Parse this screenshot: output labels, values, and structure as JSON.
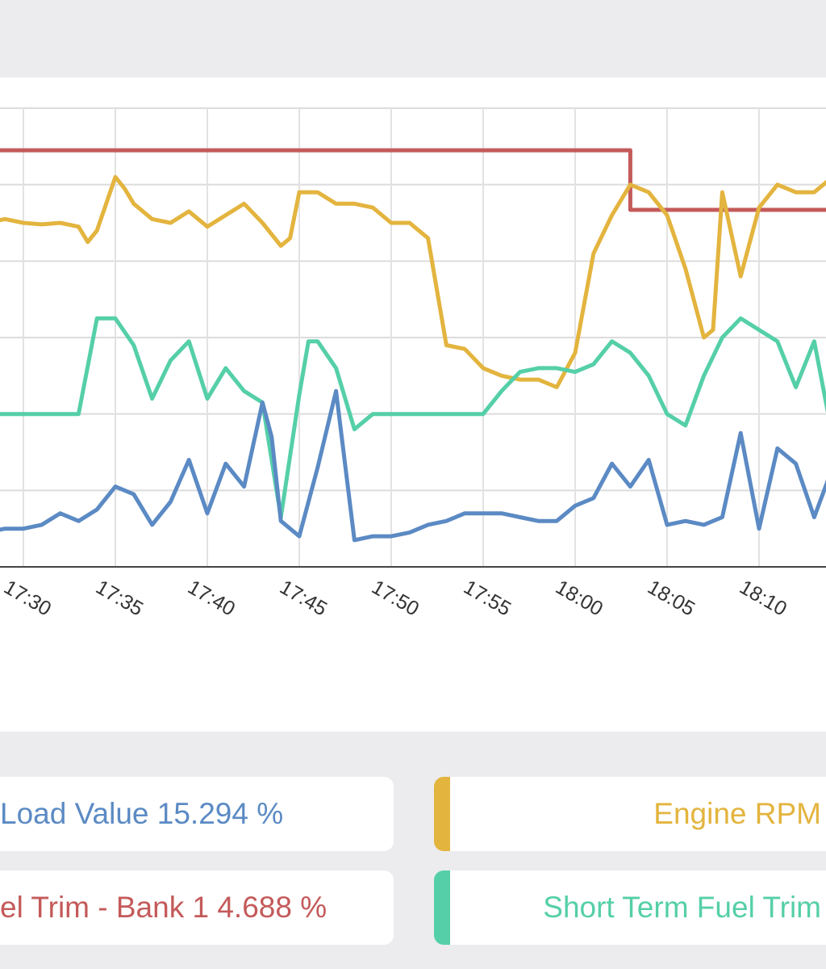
{
  "colors": {
    "load": "#5b8ac4",
    "rpm": "#e3b43e",
    "ltft": "#c45a5a",
    "stft": "#55cfa8"
  },
  "legend": {
    "load_text": "Load Value 15.294 %",
    "rpm_text": "Engine RPM",
    "ltft_text": "el Trim - Bank 1 4.688 %",
    "stft_text": "Short Term Fuel Trim"
  },
  "chart_data": {
    "type": "line",
    "xlabel": "",
    "ylabel": "",
    "grid": true,
    "xlim": [
      "17:27",
      "18:14"
    ],
    "x_ticks": [
      "17:30",
      "17:35",
      "17:40",
      "17:45",
      "17:50",
      "17:55",
      "18:00",
      "18:05",
      "18:10"
    ],
    "y_scale": "normalized 0-6 (no y tick labels visible)",
    "ylim": [
      0,
      6
    ],
    "series": [
      {
        "key": "ltft",
        "points": [
          [
            "17:27",
            5.45
          ],
          [
            "18:03",
            5.45
          ],
          [
            "18:03",
            4.67
          ],
          [
            "18:14",
            4.67
          ]
        ]
      },
      {
        "key": "rpm",
        "points": [
          [
            "17:27",
            4.5
          ],
          [
            "17:27.5",
            4.5
          ],
          [
            "17:28",
            4.5
          ],
          [
            "17:29",
            4.55
          ],
          [
            "17:30",
            4.5
          ],
          [
            "17:31",
            4.48
          ],
          [
            "17:32",
            4.5
          ],
          [
            "17:33",
            4.45
          ],
          [
            "17:33.5",
            4.25
          ],
          [
            "17:34",
            4.4
          ],
          [
            "17:35",
            5.1
          ],
          [
            "17:35.5",
            4.95
          ],
          [
            "17:36",
            4.75
          ],
          [
            "17:37",
            4.55
          ],
          [
            "17:38",
            4.5
          ],
          [
            "17:39",
            4.65
          ],
          [
            "17:40",
            4.45
          ],
          [
            "17:41",
            4.6
          ],
          [
            "17:42",
            4.75
          ],
          [
            "17:43",
            4.5
          ],
          [
            "17:44",
            4.2
          ],
          [
            "17:44.5",
            4.3
          ],
          [
            "17:45",
            4.9
          ],
          [
            "17:46",
            4.9
          ],
          [
            "17:47",
            4.75
          ],
          [
            "17:48",
            4.75
          ],
          [
            "17:49",
            4.7
          ],
          [
            "17:50",
            4.5
          ],
          [
            "17:51",
            4.5
          ],
          [
            "17:52",
            4.3
          ],
          [
            "17:53",
            2.9
          ],
          [
            "17:54",
            2.85
          ],
          [
            "17:55",
            2.6
          ],
          [
            "17:56",
            2.5
          ],
          [
            "17:57",
            2.45
          ],
          [
            "17:58",
            2.45
          ],
          [
            "17:59",
            2.35
          ],
          [
            "18:00",
            2.8
          ],
          [
            "18:01",
            4.1
          ],
          [
            "18:02",
            4.6
          ],
          [
            "18:03",
            5.0
          ],
          [
            "18:04",
            4.9
          ],
          [
            "18:05",
            4.6
          ],
          [
            "18:06",
            3.9
          ],
          [
            "18:07",
            3.0
          ],
          [
            "18:07.5",
            3.1
          ],
          [
            "18:08",
            4.9
          ],
          [
            "18:09",
            3.8
          ],
          [
            "18:10",
            4.7
          ],
          [
            "18:11",
            5.0
          ],
          [
            "18:12",
            4.9
          ],
          [
            "18:13",
            4.9
          ],
          [
            "18:14",
            5.1
          ]
        ]
      },
      {
        "key": "stft",
        "points": [
          [
            "17:27",
            2.0
          ],
          [
            "17:33",
            2.0
          ],
          [
            "17:34",
            3.25
          ],
          [
            "17:35",
            3.25
          ],
          [
            "17:36",
            2.9
          ],
          [
            "17:37",
            2.2
          ],
          [
            "17:38",
            2.7
          ],
          [
            "17:39",
            2.95
          ],
          [
            "17:40",
            2.2
          ],
          [
            "17:41",
            2.6
          ],
          [
            "17:42",
            2.3
          ],
          [
            "17:43",
            2.15
          ],
          [
            "17:44",
            0.65
          ],
          [
            "17:45",
            2.25
          ],
          [
            "17:45.5",
            2.95
          ],
          [
            "17:46",
            2.95
          ],
          [
            "17:47",
            2.6
          ],
          [
            "17:48",
            1.8
          ],
          [
            "17:49",
            2.0
          ],
          [
            "17:55",
            2.0
          ],
          [
            "17:56",
            2.3
          ],
          [
            "17:57",
            2.55
          ],
          [
            "17:58",
            2.6
          ],
          [
            "17:59",
            2.6
          ],
          [
            "18:00",
            2.55
          ],
          [
            "18:01",
            2.65
          ],
          [
            "18:02",
            2.95
          ],
          [
            "18:03",
            2.8
          ],
          [
            "18:04",
            2.5
          ],
          [
            "18:05",
            2.0
          ],
          [
            "18:06",
            1.85
          ],
          [
            "18:07",
            2.5
          ],
          [
            "18:08",
            3.0
          ],
          [
            "18:09",
            3.25
          ],
          [
            "18:10",
            3.1
          ],
          [
            "18:11",
            2.95
          ],
          [
            "18:12",
            2.35
          ],
          [
            "18:13",
            2.95
          ],
          [
            "18:14",
            1.7
          ]
        ]
      },
      {
        "key": "load",
        "points": [
          [
            "17:27",
            0.45
          ],
          [
            "17:28",
            0.45
          ],
          [
            "17:29",
            0.5
          ],
          [
            "17:30",
            0.5
          ],
          [
            "17:31",
            0.55
          ],
          [
            "17:32",
            0.7
          ],
          [
            "17:33",
            0.6
          ],
          [
            "17:34",
            0.75
          ],
          [
            "17:35",
            1.05
          ],
          [
            "17:36",
            0.95
          ],
          [
            "17:37",
            0.55
          ],
          [
            "17:38",
            0.85
          ],
          [
            "17:39",
            1.4
          ],
          [
            "17:40",
            0.7
          ],
          [
            "17:41",
            1.35
          ],
          [
            "17:42",
            1.05
          ],
          [
            "17:43",
            2.15
          ],
          [
            "17:43.5",
            1.7
          ],
          [
            "17:44",
            0.6
          ],
          [
            "17:45",
            0.4
          ],
          [
            "17:46",
            1.3
          ],
          [
            "17:47",
            2.3
          ],
          [
            "17:48",
            0.35
          ],
          [
            "17:49",
            0.4
          ],
          [
            "17:50",
            0.4
          ],
          [
            "17:51",
            0.45
          ],
          [
            "17:52",
            0.55
          ],
          [
            "17:53",
            0.6
          ],
          [
            "17:54",
            0.7
          ],
          [
            "17:55",
            0.7
          ],
          [
            "17:56",
            0.7
          ],
          [
            "17:57",
            0.65
          ],
          [
            "17:58",
            0.6
          ],
          [
            "17:59",
            0.6
          ],
          [
            "18:00",
            0.8
          ],
          [
            "18:01",
            0.9
          ],
          [
            "18:02",
            1.35
          ],
          [
            "18:03",
            1.05
          ],
          [
            "18:04",
            1.4
          ],
          [
            "18:05",
            0.55
          ],
          [
            "18:06",
            0.6
          ],
          [
            "18:07",
            0.55
          ],
          [
            "18:08",
            0.65
          ],
          [
            "18:09",
            1.75
          ],
          [
            "18:10",
            0.5
          ],
          [
            "18:11",
            1.55
          ],
          [
            "18:12",
            1.35
          ],
          [
            "18:13",
            0.65
          ],
          [
            "18:14",
            1.3
          ]
        ]
      }
    ]
  }
}
